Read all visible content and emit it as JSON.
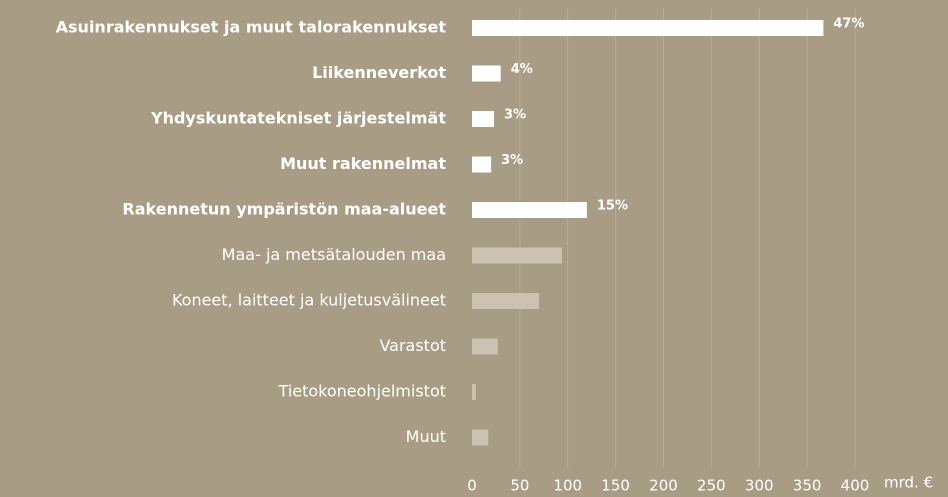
{
  "chart_data": {
    "type": "hbar",
    "categories": [
      "Asuinrakennukset ja muut talorakennukset",
      "Liikenneverkot",
      "Yhdyskuntatekniset järjestelmät",
      "Muut rakennelmat",
      "Rakennetun ympäristön maa-alueet",
      "Maa- ja metsätalouden maa",
      "Koneet, laitteet ja kuljetusvälineet",
      "Varastot",
      "Tietokoneohjelmistot",
      "Muut"
    ],
    "values": [
      367,
      30,
      23,
      20,
      120,
      94,
      70,
      27,
      4,
      17
    ],
    "share_labels": [
      "47%",
      "4%",
      "3%",
      "3%",
      "15%",
      null,
      null,
      null,
      null,
      null
    ],
    "highlight": [
      true,
      true,
      true,
      true,
      true,
      false,
      false,
      false,
      false,
      false
    ],
    "highlight_color": "#ffffff",
    "color": "#cbc2b1",
    "xlim": [
      0,
      400
    ],
    "xticks": [
      0,
      50,
      100,
      150,
      200,
      250,
      300,
      350,
      400
    ],
    "x_unit": "mrd. €",
    "grid": true
  }
}
